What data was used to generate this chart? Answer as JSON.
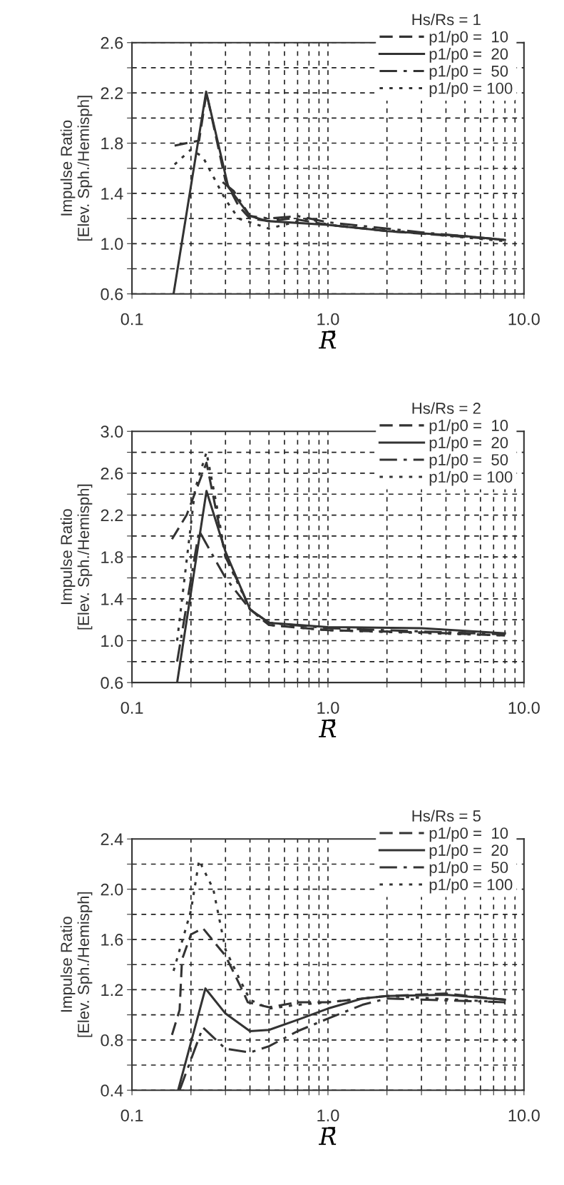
{
  "chart_data": [
    {
      "type": "line",
      "xlabel": "R̄",
      "ylabel": "Impulse Ratio\n[Elev. Sph./Hemisph]",
      "legend_title": "Hs/Rs = 1",
      "legend": "top right",
      "grid": true,
      "log": "x",
      "xlim": [
        0.1,
        10
      ],
      "ylim": [
        0.6,
        2.6
      ],
      "xticks": [
        {
          "value": 0.1,
          "label": "0.1"
        },
        {
          "value": 0.2,
          "label": null
        },
        {
          "value": 0.3,
          "label": null
        },
        {
          "value": 0.4,
          "label": null
        },
        {
          "value": 0.5,
          "label": null
        },
        {
          "value": 0.6,
          "label": null
        },
        {
          "value": 0.7,
          "label": null
        },
        {
          "value": 0.8,
          "label": null
        },
        {
          "value": 0.9,
          "label": null
        },
        {
          "value": 1,
          "label": "1.0"
        },
        {
          "value": 2,
          "label": null
        },
        {
          "value": 3,
          "label": null
        },
        {
          "value": 4,
          "label": null
        },
        {
          "value": 5,
          "label": null
        },
        {
          "value": 6,
          "label": null
        },
        {
          "value": 7,
          "label": null
        },
        {
          "value": 8,
          "label": null
        },
        {
          "value": 9,
          "label": null
        },
        {
          "value": 10,
          "label": "10.0"
        }
      ],
      "yticks": [
        {
          "value": 0.6,
          "label": "0.6"
        },
        {
          "value": 0.8,
          "label": null
        },
        {
          "value": 1.0,
          "label": "1.0"
        },
        {
          "value": 1.2,
          "label": null
        },
        {
          "value": 1.4,
          "label": "1.4"
        },
        {
          "value": 1.6,
          "label": null
        },
        {
          "value": 1.8,
          "label": "1.8"
        },
        {
          "value": 2.0,
          "label": null
        },
        {
          "value": 2.2,
          "label": "2.2"
        },
        {
          "value": 2.4,
          "label": null
        },
        {
          "value": 2.6,
          "label": "2.6"
        }
      ],
      "series": [
        {
          "name": "p1/p0 =  10",
          "color": "#333333",
          "line_style": "dashed",
          "x": [
            0.165,
            0.22,
            0.24,
            0.3,
            0.35,
            0.4,
            0.5,
            0.65,
            1.0,
            2.0,
            8.0
          ],
          "values": [
            1.78,
            1.82,
            2.2,
            1.5,
            1.3,
            1.2,
            1.18,
            1.2,
            1.15,
            1.1,
            1.03
          ]
        },
        {
          "name": "p1/p0 =  20",
          "color": "#333333",
          "line_style": "solid",
          "x": [
            0.163,
            0.239,
            0.31,
            0.4,
            0.49,
            1.0,
            2.0,
            5.0,
            8.0
          ],
          "values": [
            0.6,
            2.21,
            1.45,
            1.22,
            1.18,
            1.15,
            1.1,
            1.06,
            1.03
          ]
        },
        {
          "name": "p1/p0 =  50",
          "color": "#333333",
          "line_style": "dashdot",
          "x": [
            0.29,
            0.33,
            0.4,
            0.5,
            0.7,
            1.0,
            3.0,
            8.0
          ],
          "values": [
            1.49,
            1.42,
            1.22,
            1.2,
            1.22,
            1.17,
            1.09,
            1.03
          ]
        },
        {
          "name": "p1/p0 = 100",
          "color": "#333333",
          "line_style": "dotted",
          "x": [
            0.165,
            0.2,
            0.23,
            0.3,
            0.35,
            0.4,
            0.5,
            0.8,
            1.0,
            8.0
          ],
          "values": [
            1.63,
            1.75,
            1.69,
            1.35,
            1.2,
            1.17,
            1.12,
            1.2,
            1.15,
            1.02
          ]
        }
      ]
    },
    {
      "type": "line",
      "xlabel": "R̄",
      "ylabel": "Impulse Ratio\n[Elev. Sph./Hemisph]",
      "legend_title": "Hs/Rs = 2",
      "legend": "top right",
      "grid": true,
      "log": "x",
      "xlim": [
        0.1,
        10
      ],
      "ylim": [
        0.6,
        3.0
      ],
      "xticks": [
        {
          "value": 0.1,
          "label": "0.1"
        },
        {
          "value": 0.2,
          "label": null
        },
        {
          "value": 0.3,
          "label": null
        },
        {
          "value": 0.4,
          "label": null
        },
        {
          "value": 0.5,
          "label": null
        },
        {
          "value": 0.6,
          "label": null
        },
        {
          "value": 0.7,
          "label": null
        },
        {
          "value": 0.8,
          "label": null
        },
        {
          "value": 0.9,
          "label": null
        },
        {
          "value": 1,
          "label": "1.0"
        },
        {
          "value": 2,
          "label": null
        },
        {
          "value": 3,
          "label": null
        },
        {
          "value": 4,
          "label": null
        },
        {
          "value": 5,
          "label": null
        },
        {
          "value": 6,
          "label": null
        },
        {
          "value": 7,
          "label": null
        },
        {
          "value": 8,
          "label": null
        },
        {
          "value": 9,
          "label": null
        },
        {
          "value": 10,
          "label": "10.0"
        }
      ],
      "yticks": [
        {
          "value": 0.6,
          "label": "0.6"
        },
        {
          "value": 0.8,
          "label": null
        },
        {
          "value": 1.0,
          "label": "1.0"
        },
        {
          "value": 1.2,
          "label": null
        },
        {
          "value": 1.4,
          "label": "1.4"
        },
        {
          "value": 1.6,
          "label": null
        },
        {
          "value": 1.8,
          "label": "1.8"
        },
        {
          "value": 2.0,
          "label": null
        },
        {
          "value": 2.2,
          "label": "2.2"
        },
        {
          "value": 2.4,
          "label": null
        },
        {
          "value": 2.6,
          "label": "2.6"
        },
        {
          "value": 2.8,
          "label": null
        },
        {
          "value": 3.0,
          "label": "3.0"
        }
      ],
      "series": [
        {
          "name": "p1/p0 =  10",
          "color": "#333333",
          "line_style": "dashed",
          "x": [
            0.16,
            0.19,
            0.24,
            0.3,
            0.35,
            0.4,
            0.5,
            1.0,
            3.0,
            8.0
          ],
          "values": [
            1.97,
            2.2,
            2.7,
            1.8,
            1.55,
            1.3,
            1.15,
            1.1,
            1.08,
            1.05
          ]
        },
        {
          "name": "p1/p0 =  20",
          "color": "#333333",
          "line_style": "solid",
          "x": [
            0.17,
            0.24,
            0.3,
            0.4,
            0.5,
            1.0,
            3.0,
            8.0
          ],
          "values": [
            0.6,
            2.43,
            1.85,
            1.3,
            1.17,
            1.13,
            1.12,
            1.07
          ]
        },
        {
          "name": "p1/p0 =  50",
          "color": "#333333",
          "line_style": "dashdot",
          "x": [
            0.17,
            0.22,
            0.27,
            0.3,
            0.4,
            0.5,
            1.0,
            8.0
          ],
          "values": [
            0.8,
            2.05,
            1.75,
            1.6,
            1.3,
            1.17,
            1.12,
            1.06
          ]
        },
        {
          "name": "p1/p0 = 100",
          "color": "#333333",
          "line_style": "dotted",
          "x": [
            0.17,
            0.21,
            0.24,
            0.27,
            0.3,
            0.4,
            0.5,
            1.0,
            8.0
          ],
          "values": [
            1.0,
            2.45,
            2.8,
            2.3,
            1.8,
            1.3,
            1.15,
            1.1,
            1.05
          ]
        }
      ]
    },
    {
      "type": "line",
      "xlabel": "R̄",
      "ylabel": "Impulse Ratio\n[Elev. Sph./Hemisph]",
      "legend_title": "Hs/Rs = 5",
      "legend": "top right",
      "grid": true,
      "log": "x",
      "xlim": [
        0.1,
        10
      ],
      "ylim": [
        0.4,
        2.4
      ],
      "xticks": [
        {
          "value": 0.1,
          "label": "0.1"
        },
        {
          "value": 0.2,
          "label": null
        },
        {
          "value": 0.3,
          "label": null
        },
        {
          "value": 0.4,
          "label": null
        },
        {
          "value": 0.5,
          "label": null
        },
        {
          "value": 0.6,
          "label": null
        },
        {
          "value": 0.7,
          "label": null
        },
        {
          "value": 0.8,
          "label": null
        },
        {
          "value": 0.9,
          "label": null
        },
        {
          "value": 1,
          "label": "1.0"
        },
        {
          "value": 2,
          "label": null
        },
        {
          "value": 3,
          "label": null
        },
        {
          "value": 4,
          "label": null
        },
        {
          "value": 5,
          "label": null
        },
        {
          "value": 6,
          "label": null
        },
        {
          "value": 7,
          "label": null
        },
        {
          "value": 8,
          "label": null
        },
        {
          "value": 9,
          "label": null
        },
        {
          "value": 10,
          "label": "10.0"
        }
      ],
      "yticks": [
        {
          "value": 0.4,
          "label": "0.4"
        },
        {
          "value": 0.6,
          "label": null
        },
        {
          "value": 0.8,
          "label": "0.8"
        },
        {
          "value": 1.0,
          "label": null
        },
        {
          "value": 1.2,
          "label": "1.2"
        },
        {
          "value": 1.4,
          "label": null
        },
        {
          "value": 1.6,
          "label": "1.6"
        },
        {
          "value": 1.8,
          "label": null
        },
        {
          "value": 2.0,
          "label": "2.0"
        },
        {
          "value": 2.2,
          "label": null
        },
        {
          "value": 2.4,
          "label": "2.4"
        }
      ],
      "series": [
        {
          "name": "p1/p0 =  10",
          "color": "#333333",
          "line_style": "dashed",
          "x": [
            0.16,
            0.175,
            0.18,
            0.2,
            0.23,
            0.3,
            0.37,
            0.39,
            0.5,
            0.7,
            1.0,
            2.0,
            4.0,
            8.0
          ],
          "values": [
            0.84,
            1.04,
            1.44,
            1.64,
            1.69,
            1.47,
            1.18,
            1.1,
            1.06,
            1.1,
            1.1,
            1.15,
            1.17,
            1.12
          ]
        },
        {
          "name": "p1/p0 =  20",
          "color": "#333333",
          "line_style": "solid",
          "x": [
            0.172,
            0.237,
            0.3,
            0.4,
            0.5,
            0.7,
            1.0,
            1.5,
            2.0,
            4.0,
            8.0
          ],
          "values": [
            0.4,
            1.21,
            1.01,
            0.87,
            0.88,
            0.96,
            1.05,
            1.13,
            1.15,
            1.16,
            1.12
          ]
        },
        {
          "name": "p1/p0 =  50",
          "color": "#333333",
          "line_style": "dashdot",
          "x": [
            0.175,
            0.23,
            0.3,
            0.4,
            0.5,
            0.7,
            1.0,
            1.5,
            2.0,
            8.0
          ],
          "values": [
            0.4,
            0.9,
            0.73,
            0.7,
            0.75,
            0.87,
            0.97,
            1.08,
            1.13,
            1.1
          ]
        },
        {
          "name": "p1/p0 = 100",
          "color": "#333333",
          "line_style": "dotted",
          "x": [
            0.163,
            0.2,
            0.22,
            0.26,
            0.3,
            0.35,
            0.4,
            0.5,
            0.7,
            1.0,
            2.0,
            8.0
          ],
          "values": [
            1.35,
            1.83,
            2.23,
            2.0,
            1.52,
            1.3,
            1.12,
            1.05,
            1.08,
            1.1,
            1.15,
            1.1
          ]
        }
      ]
    }
  ]
}
